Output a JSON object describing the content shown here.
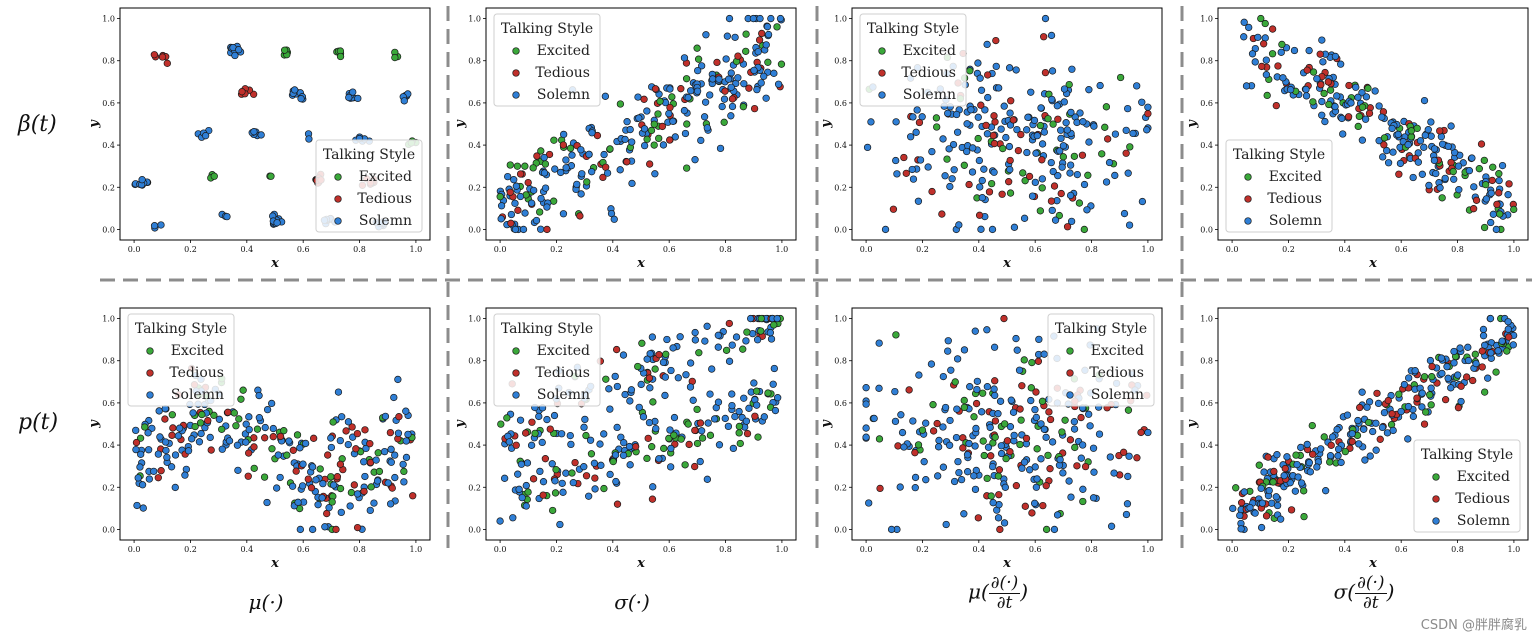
{
  "chart_data": {
    "type": "scatter",
    "legend_title": "Talking Style",
    "series_names": [
      "Excited",
      "Tedious",
      "Solemn"
    ],
    "colors": {
      "Excited": "#3aa83a",
      "Tedious": "#c0302b",
      "Solemn": "#2f7fd6",
      "edge": "#1a1a1a",
      "divider": "#8c8c8c"
    },
    "xlabel": "x",
    "ylabel": "y",
    "xlim": [
      -0.05,
      1.05
    ],
    "ylim": [
      -0.05,
      1.05
    ],
    "xticks": [
      "0.0",
      "0.2",
      "0.4",
      "0.6",
      "0.8",
      "1.0"
    ],
    "yticks": [
      "0.0",
      "0.2",
      "0.4",
      "0.6",
      "0.8",
      "1.0"
    ],
    "row_labels": [
      "β(t)",
      "p(t)"
    ],
    "col_labels": {
      "c0": "μ(·)",
      "c1": "σ(·)",
      "c2_prefix": "μ(",
      "c3_prefix": "σ(",
      "frac_num": "∂(·)",
      "frac_den": "∂t",
      "suffix": ")"
    },
    "panels": [
      {
        "name": "beta-mu",
        "pattern": "clusters",
        "seed": 11,
        "n": 150,
        "legend": "bottom-right"
      },
      {
        "name": "beta-sigma",
        "pattern": "rising",
        "seed": 23,
        "n": 300,
        "legend": "top-left"
      },
      {
        "name": "beta-dmu",
        "pattern": "blob",
        "seed": 37,
        "n": 280,
        "legend": "top-left"
      },
      {
        "name": "beta-dsigma",
        "pattern": "falling",
        "seed": 41,
        "n": 260,
        "legend": "bottom-left"
      },
      {
        "name": "p-mu",
        "pattern": "wave",
        "seed": 53,
        "n": 300,
        "legend": "top-left"
      },
      {
        "name": "p-sigma",
        "pattern": "twoband",
        "seed": 67,
        "n": 320,
        "legend": "top-left"
      },
      {
        "name": "p-dmu",
        "pattern": "blob2",
        "seed": 79,
        "n": 300,
        "legend": "top-right"
      },
      {
        "name": "p-dsigma",
        "pattern": "rising2",
        "seed": 97,
        "n": 300,
        "legend": "bottom-right"
      }
    ],
    "watermark": "CSDN @胖胖腐乳"
  }
}
